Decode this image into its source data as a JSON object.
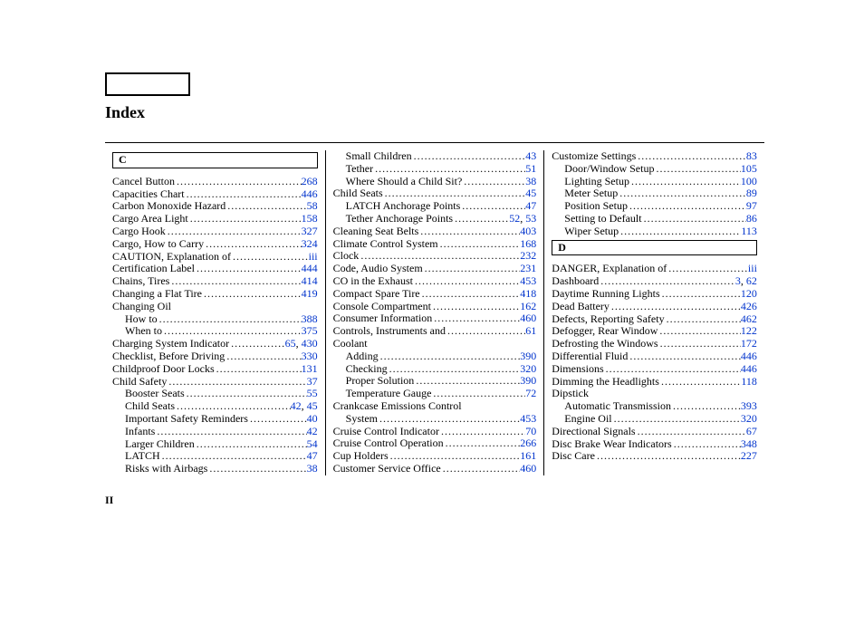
{
  "title": "Index",
  "footer_page_num": "II",
  "columns": [
    {
      "letter": "C",
      "entries": [
        {
          "label": "Cancel Button",
          "pages": [
            "268"
          ]
        },
        {
          "label": "Capacities Chart",
          "pages": [
            "446"
          ]
        },
        {
          "label": "Carbon Monoxide Hazard",
          "pages": [
            "58"
          ]
        },
        {
          "label": "Cargo Area Light",
          "pages": [
            "158"
          ]
        },
        {
          "label": "Cargo Hook",
          "pages": [
            "327"
          ]
        },
        {
          "label": "Cargo, How to Carry",
          "pages": [
            "324"
          ]
        },
        {
          "label": "CAUTION, Explanation of",
          "pages": [
            "iii"
          ]
        },
        {
          "label": "Certification Label",
          "pages": [
            "444"
          ]
        },
        {
          "label": "Chains, Tires",
          "pages": [
            "414"
          ]
        },
        {
          "label": "Changing a Flat Tire",
          "pages": [
            "419"
          ]
        },
        {
          "label": "Changing Oil",
          "pages": [],
          "no_page": true
        },
        {
          "label": "How to",
          "pages": [
            "388"
          ],
          "sub": true
        },
        {
          "label": "When to",
          "pages": [
            "375"
          ],
          "sub": true
        },
        {
          "label": "Charging System Indicator",
          "pages": [
            "65",
            "430"
          ]
        },
        {
          "label": "Checklist, Before Driving",
          "pages": [
            "330"
          ]
        },
        {
          "label": "Childproof Door Locks",
          "pages": [
            "131"
          ]
        },
        {
          "label": "Child Safety",
          "pages": [
            "37"
          ]
        },
        {
          "label": "Booster Seats",
          "pages": [
            "55"
          ],
          "sub": true
        },
        {
          "label": "Child Seats",
          "pages": [
            "42",
            "45"
          ],
          "sub": true
        },
        {
          "label": "Important Safety Reminders",
          "pages": [
            "40"
          ],
          "sub": true
        },
        {
          "label": "Infants",
          "pages": [
            "42"
          ],
          "sub": true
        },
        {
          "label": "Larger Children",
          "pages": [
            "54"
          ],
          "sub": true
        },
        {
          "label": "LATCH",
          "pages": [
            "47"
          ],
          "sub": true
        },
        {
          "label": "Risks with Airbags",
          "pages": [
            "38"
          ],
          "sub": true
        }
      ]
    },
    {
      "entries": [
        {
          "label": "Small Children",
          "pages": [
            "43"
          ],
          "sub": true
        },
        {
          "label": "Tether",
          "pages": [
            "51"
          ],
          "sub": true
        },
        {
          "label": "Where Should a Child Sit?",
          "pages": [
            "38"
          ],
          "sub": true
        },
        {
          "label": "Child Seats",
          "pages": [
            "45"
          ]
        },
        {
          "label": "LATCH Anchorage Points",
          "pages": [
            "47"
          ],
          "sub": true
        },
        {
          "label": "Tether Anchorage Points",
          "pages": [
            "52",
            "53"
          ],
          "sub": true
        },
        {
          "label": "Cleaning Seat Belts",
          "pages": [
            "403"
          ]
        },
        {
          "label": "Climate Control System",
          "pages": [
            "168"
          ]
        },
        {
          "label": "Clock",
          "pages": [
            "232"
          ]
        },
        {
          "label": "Code, Audio System",
          "pages": [
            "231"
          ]
        },
        {
          "label": "CO in the Exhaust",
          "pages": [
            "453"
          ]
        },
        {
          "label": "Compact Spare Tire",
          "pages": [
            "418"
          ]
        },
        {
          "label": "Console Compartment",
          "pages": [
            "162"
          ]
        },
        {
          "label": "Consumer Information",
          "pages": [
            "460"
          ]
        },
        {
          "label": "Controls, Instruments and",
          "pages": [
            "61"
          ]
        },
        {
          "label": "Coolant",
          "pages": [],
          "no_page": true
        },
        {
          "label": "Adding",
          "pages": [
            "390"
          ],
          "sub": true
        },
        {
          "label": "Checking",
          "pages": [
            "320"
          ],
          "sub": true
        },
        {
          "label": "Proper Solution",
          "pages": [
            "390"
          ],
          "sub": true
        },
        {
          "label": "Temperature Gauge",
          "pages": [
            "72"
          ],
          "sub": true
        },
        {
          "label": "Crankcase Emissions Control",
          "pages": [],
          "no_page": true
        },
        {
          "label": "System",
          "pages": [
            "453"
          ],
          "sub": true
        },
        {
          "label": "Cruise Control Indicator",
          "pages": [
            "70"
          ]
        },
        {
          "label": "Cruise Control Operation",
          "pages": [
            "266"
          ]
        },
        {
          "label": "Cup Holders",
          "pages": [
            "161"
          ]
        },
        {
          "label": "Customer Service Office",
          "pages": [
            "460"
          ]
        }
      ]
    },
    {
      "entries_before_letter": [
        {
          "label": "Customize Settings",
          "pages": [
            "83"
          ]
        },
        {
          "label": "Door/Window Setup",
          "pages": [
            "105"
          ],
          "sub": true
        },
        {
          "label": "Lighting Setup",
          "pages": [
            "100"
          ],
          "sub": true
        },
        {
          "label": "Meter Setup",
          "pages": [
            "89"
          ],
          "sub": true
        },
        {
          "label": "Position Setup",
          "pages": [
            "97"
          ],
          "sub": true
        },
        {
          "label": "Setting to Default",
          "pages": [
            "86"
          ],
          "sub": true
        },
        {
          "label": "Wiper Setup",
          "pages": [
            "113"
          ],
          "sub": true
        }
      ],
      "letter": "D",
      "entries": [
        {
          "label": "DANGER, Explanation of",
          "pages": [
            "iii"
          ]
        },
        {
          "label": "Dashboard",
          "pages": [
            "3",
            "62"
          ]
        },
        {
          "label": "Daytime Running Lights",
          "pages": [
            "120"
          ]
        },
        {
          "label": "Dead Battery",
          "pages": [
            "426"
          ]
        },
        {
          "label": "Defects, Reporting Safety",
          "pages": [
            "462"
          ]
        },
        {
          "label": "Defogger, Rear Window",
          "pages": [
            "122"
          ]
        },
        {
          "label": "Defrosting the Windows",
          "pages": [
            "172"
          ]
        },
        {
          "label": "Differential Fluid",
          "pages": [
            "446"
          ]
        },
        {
          "label": "Dimensions",
          "pages": [
            "446"
          ]
        },
        {
          "label": "Dimming the Headlights",
          "pages": [
            "118"
          ]
        },
        {
          "label": "Dipstick",
          "pages": [],
          "no_page": true
        },
        {
          "label": "Automatic Transmission",
          "pages": [
            "393"
          ],
          "sub": true
        },
        {
          "label": "Engine Oil",
          "pages": [
            "320"
          ],
          "sub": true
        },
        {
          "label": "Directional Signals",
          "pages": [
            "67"
          ]
        },
        {
          "label": "Disc Brake Wear Indicators",
          "pages": [
            "348"
          ]
        },
        {
          "label": "Disc Care",
          "pages": [
            "227"
          ]
        }
      ]
    }
  ]
}
